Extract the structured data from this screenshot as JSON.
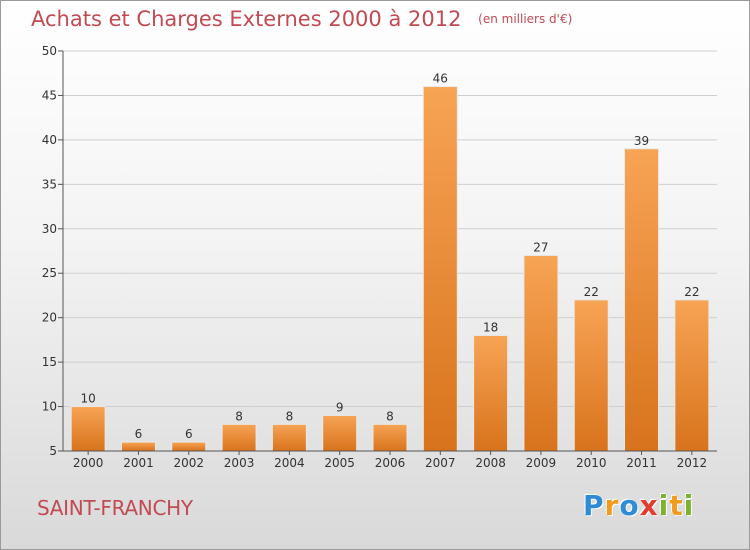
{
  "header": {
    "title": "Achats et Charges Externes 2000 à 2012",
    "unit": "(en milliers d'€)"
  },
  "footer": {
    "place": "SAINT-FRANCHY",
    "logo": "Proxiti",
    "logo_letters": [
      {
        "ch": "P",
        "color": "#2e8bd6"
      },
      {
        "ch": "r",
        "color": "#f29a1d"
      },
      {
        "ch": "o",
        "color": "#2e8bd6"
      },
      {
        "ch": "x",
        "color": "#e23b2f"
      },
      {
        "ch": "i",
        "color": "#7cb32e"
      },
      {
        "ch": "t",
        "color": "#f29a1d"
      },
      {
        "ch": "i",
        "color": "#7cb32e"
      }
    ]
  },
  "colors": {
    "accent": "#c24a53",
    "bar_top": "#f7a455",
    "bar_bottom": "#d8731c",
    "axis": "#555555",
    "grid": "#cfcfcf"
  },
  "chart_data": {
    "type": "bar",
    "title": "Achats et Charges Externes 2000 à 2012",
    "xlabel": "",
    "ylabel": "",
    "categories": [
      "2000",
      "2001",
      "2002",
      "2003",
      "2004",
      "2005",
      "2006",
      "2007",
      "2008",
      "2009",
      "2010",
      "2011",
      "2012"
    ],
    "values": [
      10,
      6,
      6,
      8,
      8,
      9,
      8,
      46,
      18,
      27,
      22,
      39,
      22
    ],
    "ylim": [
      5,
      50
    ],
    "yticks": [
      5,
      10,
      15,
      20,
      25,
      30,
      35,
      40,
      45,
      50
    ],
    "grid": true
  }
}
